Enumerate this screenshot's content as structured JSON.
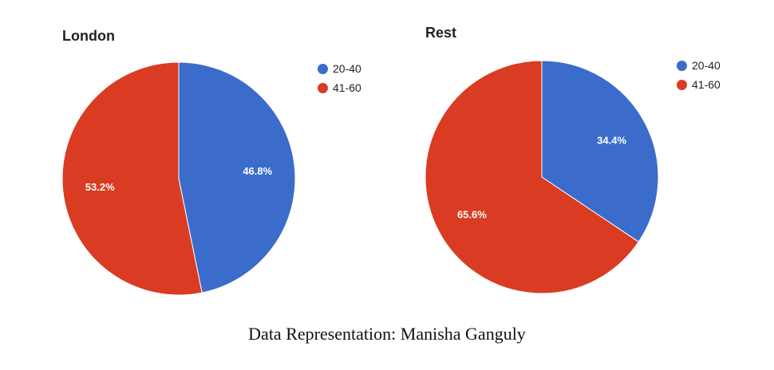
{
  "chart_data": [
    {
      "type": "pie",
      "title": "London",
      "categories": [
        "20-40",
        "41-60"
      ],
      "values": [
        46.8,
        53.2
      ],
      "labels": [
        "46.8%",
        "53.2%"
      ],
      "colors": [
        "#3b6ccc",
        "#d93c22"
      ],
      "legend": "right"
    },
    {
      "type": "pie",
      "title": "Rest",
      "categories": [
        "20-40",
        "41-60"
      ],
      "values": [
        34.4,
        65.6
      ],
      "labels": [
        "34.4%",
        "65.6%"
      ],
      "colors": [
        "#3b6ccc",
        "#d93c22"
      ],
      "legend": "right"
    }
  ],
  "caption": "Data Representation: Manisha Ganguly"
}
